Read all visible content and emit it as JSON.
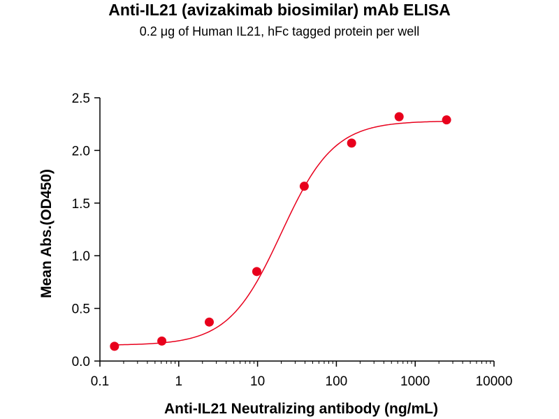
{
  "chart_data": {
    "type": "scatter",
    "title": "Anti-IL21 (avizakimab biosimilar) mAb ELISA",
    "subtitle": "0.2 μg of Human IL21, hFc tagged protein per well",
    "xlabel": "Anti-IL21 Neutralizing antibody (ng/mL)",
    "ylabel": "Mean Abs.(OD450)",
    "x_scale": "log",
    "xlim": [
      0.1,
      10000
    ],
    "ylim": [
      0,
      2.5
    ],
    "x_ticks": [
      0.1,
      1,
      10,
      100,
      1000,
      10000
    ],
    "x_tick_labels": [
      "0.1",
      "1",
      "10",
      "100",
      "1000",
      "10000"
    ],
    "y_ticks": [
      0,
      0.5,
      1.0,
      1.5,
      2.0,
      2.5
    ],
    "y_tick_labels": [
      "0.0",
      "0.5",
      "1.0",
      "1.5",
      "2.0",
      "2.5"
    ],
    "grid": false,
    "series": [
      {
        "x": [
          0.153,
          0.61,
          2.44,
          9.77,
          39.1,
          156,
          625,
          2500
        ],
        "y": [
          0.14,
          0.19,
          0.37,
          0.85,
          1.66,
          2.07,
          2.32,
          2.29
        ],
        "color": "#e8001c",
        "fit": "four-parameter logistic",
        "fit_params": {
          "bottom": 0.15,
          "top": 2.28,
          "ec50": 20,
          "hill": 1.3
        }
      }
    ]
  }
}
